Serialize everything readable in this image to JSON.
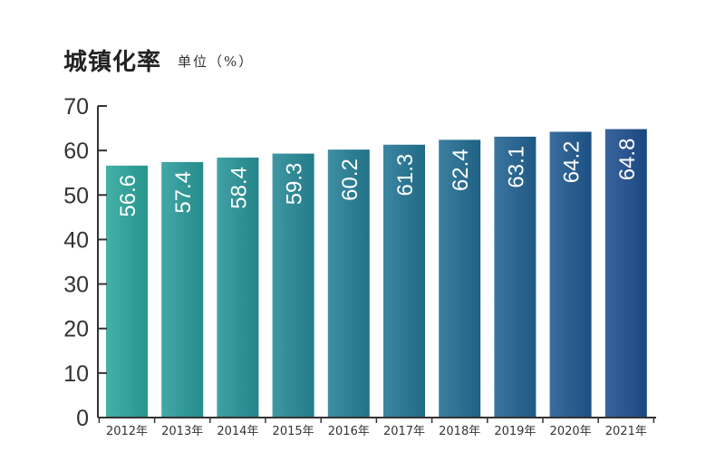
{
  "chart_data": {
    "type": "bar",
    "title": "城镇化率",
    "unit": "单位（%）",
    "categories": [
      "2012年",
      "2013年",
      "2014年",
      "2015年",
      "2016年",
      "2017年",
      "2018年",
      "2019年",
      "2020年",
      "2021年"
    ],
    "values": [
      56.6,
      57.4,
      58.4,
      59.3,
      60.2,
      61.3,
      62.4,
      63.1,
      64.2,
      64.8
    ],
    "value_labels": [
      "56.6",
      "57.4",
      "58.4",
      "59.3",
      "60.2",
      "61.3",
      "62.4",
      "63.1",
      "64.2",
      "64.8"
    ],
    "yticks": [
      0,
      10,
      20,
      30,
      40,
      50,
      60,
      70
    ],
    "ylim": [
      0,
      70
    ],
    "xlabel": "",
    "ylabel": "",
    "grid": false,
    "legend": "none",
    "colors": {
      "bar_start": "#2aa69b",
      "bar_end": "#1e4f8f",
      "axis": "#333333",
      "label": "#ffffff"
    }
  }
}
